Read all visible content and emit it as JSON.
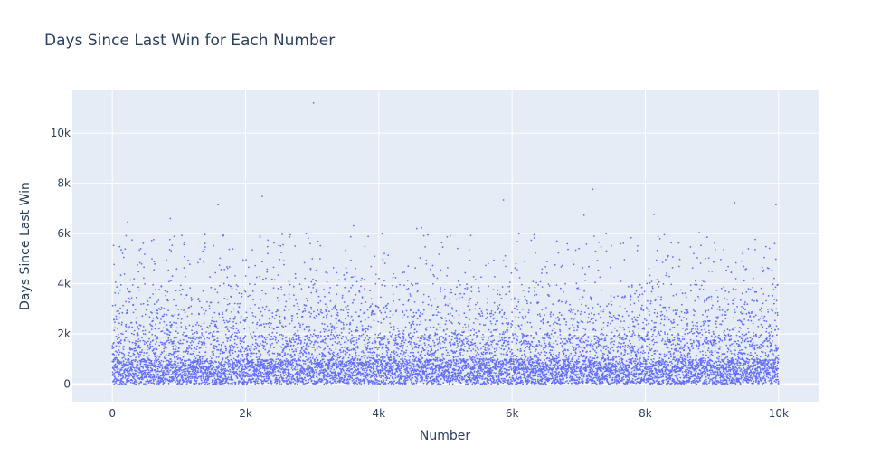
{
  "chart_data": {
    "type": "scatter",
    "title": "Days Since Last Win for Each Number",
    "xlabel": "Number",
    "ylabel": "Days Since Last Win",
    "xlim": [
      -600,
      10600
    ],
    "ylim": [
      -700,
      11700
    ],
    "x_ticks": [
      {
        "value": 0,
        "label": "0"
      },
      {
        "value": 2000,
        "label": "2k"
      },
      {
        "value": 4000,
        "label": "4k"
      },
      {
        "value": 6000,
        "label": "6k"
      },
      {
        "value": 8000,
        "label": "8k"
      },
      {
        "value": 10000,
        "label": "10k"
      }
    ],
    "y_ticks": [
      {
        "value": 0,
        "label": "0"
      },
      {
        "value": 2000,
        "label": "2k"
      },
      {
        "value": 4000,
        "label": "4k"
      },
      {
        "value": 6000,
        "label": "6k"
      },
      {
        "value": 8000,
        "label": "8k"
      },
      {
        "value": 10000,
        "label": "10k"
      }
    ],
    "grid": true,
    "marker_color": "#636efa",
    "plot_background": "#e5ecf6",
    "point_count": 10000,
    "notable_points": [
      {
        "x": 3020,
        "y": 11200
      },
      {
        "x": 2250,
        "y": 7480
      },
      {
        "x": 7210,
        "y": 7760
      },
      {
        "x": 1590,
        "y": 7150
      },
      {
        "x": 5870,
        "y": 7340
      },
      {
        "x": 9340,
        "y": 7230
      },
      {
        "x": 9960,
        "y": 7150
      },
      {
        "x": 870,
        "y": 6600
      },
      {
        "x": 7080,
        "y": 6730
      },
      {
        "x": 8130,
        "y": 6760
      },
      {
        "x": 230,
        "y": 6460
      },
      {
        "x": 3620,
        "y": 6310
      },
      {
        "x": 4570,
        "y": 6200
      },
      {
        "x": 4640,
        "y": 6230
      },
      {
        "x": 2910,
        "y": 6000
      },
      {
        "x": 4050,
        "y": 5990
      },
      {
        "x": 5380,
        "y": 5920
      },
      {
        "x": 6330,
        "y": 5950
      },
      {
        "x": 8810,
        "y": 6040
      },
      {
        "x": 110,
        "y": 5480
      },
      {
        "x": 1390,
        "y": 5600
      },
      {
        "x": 2330,
        "y": 5480
      },
      {
        "x": 2500,
        "y": 5520
      },
      {
        "x": 6840,
        "y": 5370
      },
      {
        "x": 8390,
        "y": 5630
      },
      {
        "x": 9040,
        "y": 5620
      },
      {
        "x": 9810,
        "y": 5480
      },
      {
        "x": 9940,
        "y": 5600
      }
    ],
    "distribution": [
      {
        "y_range": [
          0,
          1000
        ],
        "share": 0.6
      },
      {
        "y_range": [
          1000,
          2000
        ],
        "share": 0.22
      },
      {
        "y_range": [
          2000,
          3000
        ],
        "share": 0.1
      },
      {
        "y_range": [
          3000,
          4000
        ],
        "share": 0.05
      },
      {
        "y_range": [
          4000,
          5000
        ],
        "share": 0.02
      },
      {
        "y_range": [
          5000,
          6000
        ],
        "share": 0.01
      }
    ]
  }
}
